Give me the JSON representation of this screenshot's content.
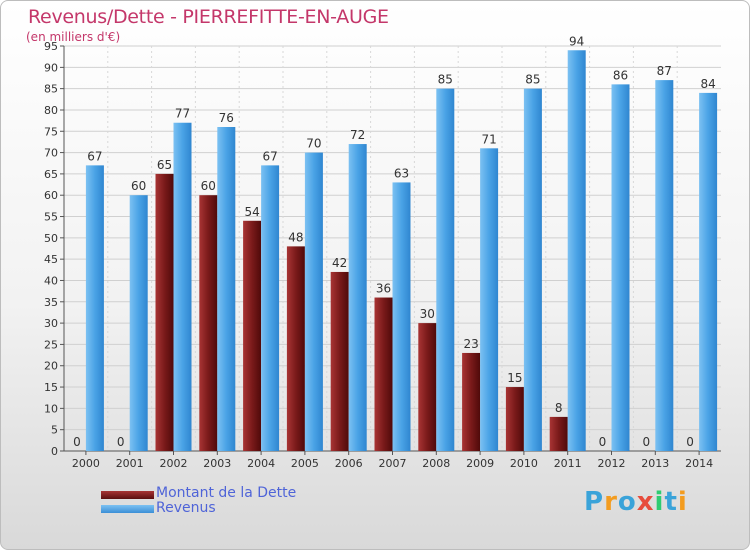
{
  "title": "Revenus/Dette - PIERREFITTE-EN-AUGE",
  "subtitle": "(en milliers d'€)",
  "logo": {
    "letters": [
      "P",
      "r",
      "o",
      "x",
      "i",
      "t",
      "i"
    ],
    "colors": [
      "#3aa3d9",
      "#f39c1f",
      "#3aa3d9",
      "#e74c3c",
      "#2ecc71",
      "#3aa3d9",
      "#f39c1f"
    ]
  },
  "chart_data": {
    "type": "bar",
    "categories": [
      "2000",
      "2001",
      "2002",
      "2003",
      "2004",
      "2005",
      "2006",
      "2007",
      "2008",
      "2009",
      "2010",
      "2011",
      "2012",
      "2013",
      "2014"
    ],
    "series": [
      {
        "name": "Montant de la Dette",
        "color": "#7a1a1a",
        "values": [
          0,
          0,
          65,
          60,
          54,
          48,
          42,
          36,
          30,
          23,
          15,
          8,
          0,
          0,
          0
        ]
      },
      {
        "name": "Revenus",
        "color": "#4aa3e6",
        "values": [
          67,
          60,
          77,
          76,
          67,
          70,
          72,
          63,
          85,
          71,
          85,
          94,
          86,
          87,
          84
        ]
      }
    ],
    "yticks": [
      0,
      5,
      10,
      15,
      20,
      25,
      30,
      35,
      40,
      45,
      50,
      55,
      60,
      65,
      70,
      75,
      80,
      85,
      90,
      95
    ],
    "ylim": [
      0,
      95
    ],
    "grid": true,
    "legend": "bottom-left"
  }
}
